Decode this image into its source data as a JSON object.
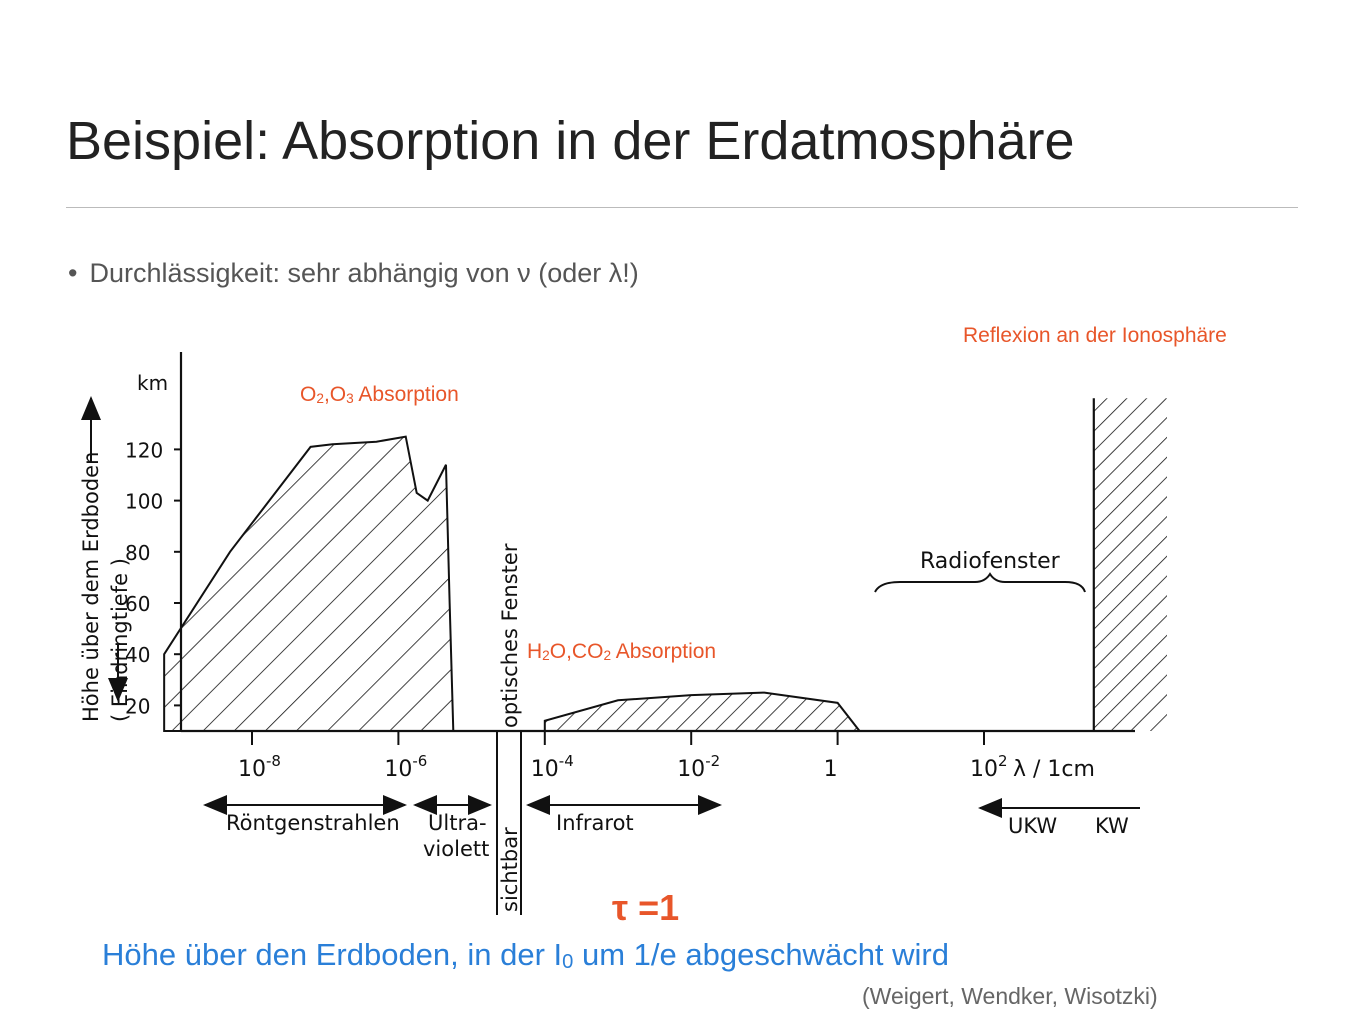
{
  "slide": {
    "title": "Beispiel: Absorption in der Erdatmosphäre",
    "bullet": "Durchlässigkeit: sehr abhängig von ν (oder λ!)",
    "tau": "τ =1",
    "note_pre": "Höhe über den Erdboden, in der I",
    "note_sub": "0",
    "note_post": " um 1/e abgeschwächt wird",
    "citation": "(Weigert, Wendker, Wisotzki)"
  },
  "annotations": {
    "reflexion": "Reflexion an der Ionosphäre",
    "o_absorption": {
      "o": "O",
      "s1": "2",
      "mid": ",O",
      "s2": "3",
      "rest": " Absorption"
    },
    "h_absorption": {
      "h": "H",
      "s1": "2",
      "mid": "O,CO",
      "s2": "2",
      "rest": " Absorption"
    }
  },
  "chart_data": {
    "type": "area",
    "ylabel_line1": "Höhe über dem Erdboden",
    "ylabel_line2": "( Eindringtiefe )",
    "yunit": "km",
    "ylim": [
      10,
      140
    ],
    "y_ticks": [
      20,
      40,
      60,
      80,
      100,
      120
    ],
    "xlabel": "λ / 1cm",
    "x_scale": "log",
    "x_ticks": [
      {
        "exp": -8,
        "base": "10",
        "sup": "-8"
      },
      {
        "exp": -6,
        "base": "10",
        "sup": "-6"
      },
      {
        "exp": -4,
        "base": "10",
        "sup": "-4"
      },
      {
        "exp": -2,
        "base": "10",
        "sup": "-2"
      },
      {
        "exp": 0,
        "base": "1",
        "sup": ""
      },
      {
        "exp": 2,
        "base": "10",
        "sup": "2"
      }
    ],
    "regions": {
      "optical_window": "optisches Fenster",
      "radio_window": "Radiofenster",
      "visible": "sichtbar",
      "xray": "Röntgenstrahlen",
      "uv_line1": "Ultra-",
      "uv_line2": "violett",
      "infrared": "Infrarot",
      "ukw": "UKW",
      "kw": "KW"
    },
    "series": [
      {
        "log_lambda": [
          -9.2,
          -8.3,
          -7.2,
          -6.9,
          -6.3,
          -5.9,
          -5.75,
          -5.6,
          -5.35,
          -5.3,
          -5.25
        ],
        "height_km": [
          40,
          80,
          121,
          122,
          123,
          125,
          103,
          100,
          114,
          60,
          10
        ]
      },
      {
        "log_lambda": [
          -4.0,
          -3.0,
          -2.0,
          -1.0,
          0.0,
          0.3
        ],
        "height_km": [
          14,
          22,
          24,
          25,
          21,
          10
        ]
      },
      {
        "log_lambda": [
          3.5,
          4.5
        ],
        "height_km": [
          140,
          140
        ]
      }
    ]
  }
}
